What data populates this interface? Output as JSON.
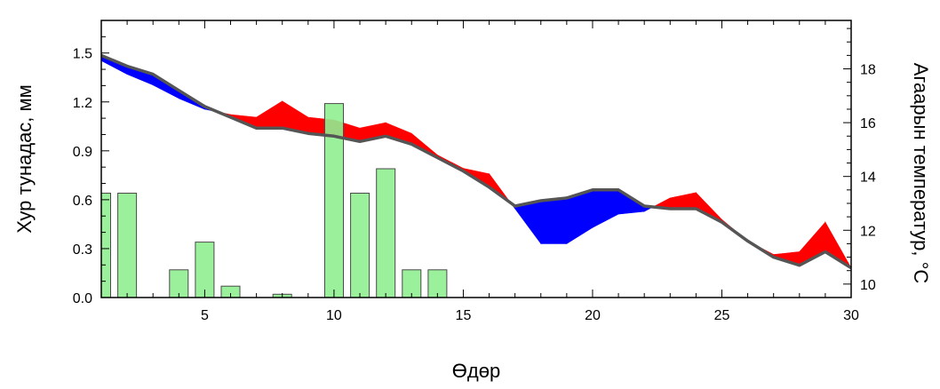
{
  "chart_data": {
    "type": "bar",
    "xlabel": "Өдөр",
    "ylabel_left": "Хур тунадас, мм",
    "ylabel_right": "Агаарын температур, °С",
    "xlim": [
      1,
      30
    ],
    "ylim_left": [
      0,
      1.7
    ],
    "ylim_right": [
      9.5,
      19.8
    ],
    "x_ticks": [
      5,
      10,
      15,
      20,
      25,
      30
    ],
    "y_left_ticks": [
      "0.0",
      "0.3",
      "0.6",
      "0.9",
      "1.2",
      "1.5"
    ],
    "y_right_ticks": [
      "10",
      "12",
      "14",
      "16",
      "18"
    ],
    "colors": {
      "bars": "#90ee90",
      "bar_edge": "#4a4a4a",
      "above": "#ff0000",
      "below": "#0000ff",
      "reference_line": "#555555"
    },
    "precipitation": {
      "x": [
        1,
        2,
        3,
        4,
        5,
        6,
        7,
        8,
        9,
        10,
        11,
        12,
        13,
        14,
        15,
        16,
        17,
        18,
        19,
        20,
        21,
        22,
        23,
        24,
        25,
        26,
        27,
        28,
        29,
        30
      ],
      "values": [
        0.64,
        0.64,
        0,
        0.17,
        0.34,
        0.07,
        0,
        0.02,
        0,
        1.19,
        0.64,
        0.79,
        0.17,
        0.17,
        0,
        0,
        0,
        0,
        0,
        0,
        0,
        0,
        0,
        0,
        0,
        0,
        0,
        0,
        0,
        0
      ]
    },
    "temperature": {
      "x": [
        1,
        2,
        3,
        4,
        5,
        6,
        7,
        8,
        9,
        10,
        11,
        12,
        13,
        14,
        15,
        16,
        17,
        18,
        19,
        20,
        21,
        22,
        23,
        24,
        25,
        26,
        27,
        28,
        29,
        30
      ],
      "series": [
        {
          "values": [
            18.3,
            17.8,
            17.4,
            16.9,
            16.5,
            16.3,
            16.2,
            16.8,
            16.2,
            16.1,
            15.8,
            16.0,
            15.6,
            14.8,
            14.3,
            14.1,
            12.8,
            11.5,
            11.5,
            12.1,
            12.6,
            12.7,
            13.2,
            13.4,
            12.4,
            11.6,
            11.1,
            11.2,
            12.3,
            10.6
          ]
        },
        {
          "values": [
            18.5,
            18.1,
            17.8,
            17.2,
            16.6,
            16.2,
            15.8,
            15.8,
            15.6,
            15.5,
            15.3,
            15.5,
            15.2,
            14.7,
            14.2,
            13.6,
            12.9,
            13.1,
            13.2,
            13.5,
            13.5,
            12.9,
            12.8,
            12.8,
            12.3,
            11.6,
            11.0,
            10.7,
            11.2,
            10.6
          ]
        }
      ]
    }
  }
}
